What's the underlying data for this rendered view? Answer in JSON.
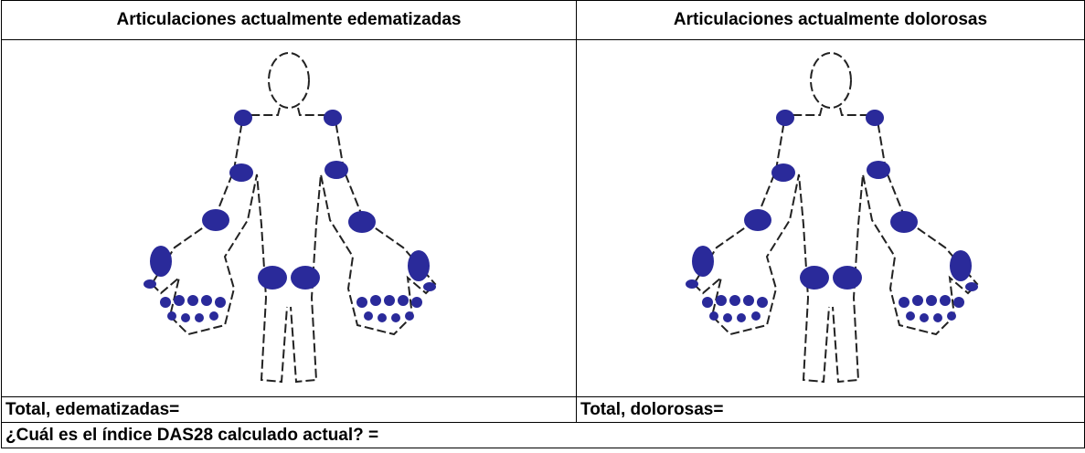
{
  "table": {
    "header": [
      "Articulaciones actualmente edematizadas",
      "Articulaciones actualmente dolorosas"
    ],
    "totals": [
      "Total, edematizadas=",
      "Total, dolorosas="
    ],
    "question": "¿Cuál es el índice DAS28 calculado actual? ="
  }
}
